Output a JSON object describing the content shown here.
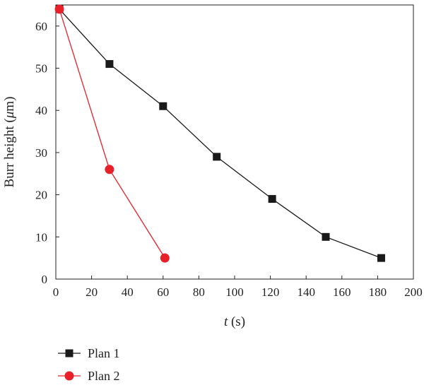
{
  "chart_data": {
    "type": "line",
    "title": "",
    "xlabel_italic": "t",
    "xlabel_unit": " (s)",
    "ylabel_prefix": "Burr height (",
    "ylabel_unit_italic": "μ",
    "ylabel_suffix": "m)",
    "xlim": [
      0,
      200
    ],
    "ylim": [
      0,
      65
    ],
    "xticks": [
      0,
      20,
      40,
      60,
      80,
      100,
      120,
      140,
      160,
      180,
      200
    ],
    "yticks": [
      0,
      10,
      20,
      30,
      40,
      50,
      60
    ],
    "grid": false,
    "legend_position": "bottom-left",
    "series": [
      {
        "name": "Plan 1",
        "color": "#1a1a1a",
        "marker": "square",
        "x": [
          2,
          30,
          60,
          90,
          121,
          151,
          182
        ],
        "y": [
          64,
          51,
          41,
          29,
          19,
          10,
          5
        ]
      },
      {
        "name": "Plan 2",
        "color": "#e8202a",
        "marker": "circle",
        "x": [
          2,
          30,
          61
        ],
        "y": [
          64,
          26,
          5
        ]
      }
    ]
  }
}
